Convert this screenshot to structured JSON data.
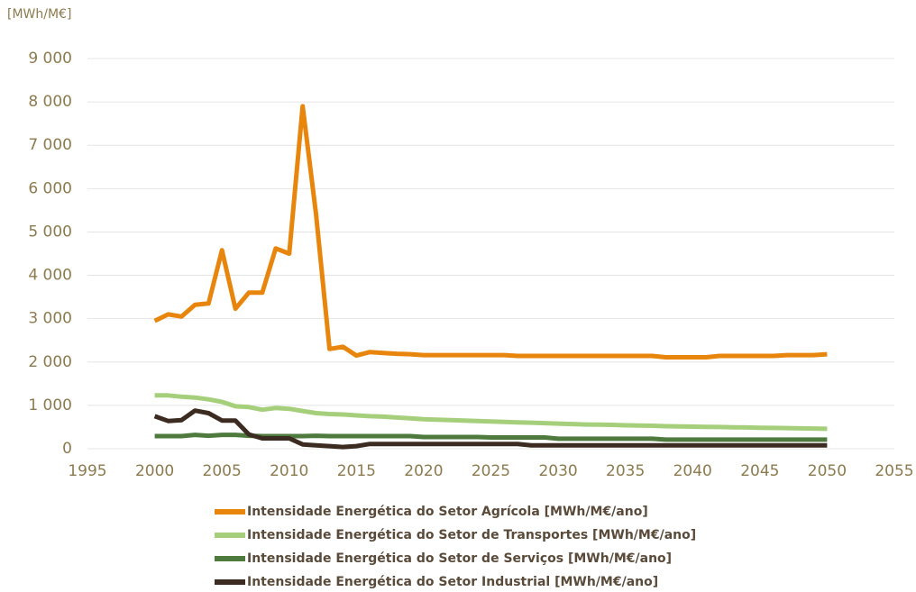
{
  "chart_data": {
    "type": "line",
    "y_label": "[MWh/M€]",
    "x": [
      2000,
      2001,
      2002,
      2003,
      2004,
      2005,
      2006,
      2007,
      2008,
      2009,
      2010,
      2011,
      2012,
      2013,
      2014,
      2015,
      2016,
      2017,
      2018,
      2019,
      2020,
      2021,
      2022,
      2023,
      2024,
      2025,
      2026,
      2027,
      2028,
      2029,
      2030,
      2031,
      2032,
      2033,
      2034,
      2035,
      2036,
      2037,
      2038,
      2039,
      2040,
      2041,
      2042,
      2043,
      2044,
      2045,
      2046,
      2047,
      2048,
      2049,
      2050
    ],
    "series": [
      {
        "name": "Intensidade Energética do Setor Agrícola [MWh/M€/ano]",
        "color": "#e8850c",
        "values": [
          2950,
          3100,
          3050,
          3320,
          3350,
          4580,
          3230,
          3600,
          3600,
          4620,
          4500,
          7900,
          5400,
          2300,
          2350,
          2150,
          2230,
          2210,
          2190,
          2180,
          2160,
          2160,
          2160,
          2160,
          2160,
          2160,
          2160,
          2140,
          2140,
          2140,
          2140,
          2140,
          2140,
          2140,
          2140,
          2140,
          2140,
          2140,
          2110,
          2110,
          2110,
          2110,
          2140,
          2140,
          2140,
          2140,
          2140,
          2160,
          2160,
          2160,
          2180
        ]
      },
      {
        "name": "Intensidade Energética do Setor de Transportes [MWh/M€/ano]",
        "color": "#a6cf7c",
        "values": [
          1230,
          1230,
          1200,
          1180,
          1140,
          1080,
          980,
          960,
          900,
          940,
          920,
          870,
          820,
          800,
          790,
          770,
          750,
          740,
          720,
          700,
          680,
          670,
          660,
          650,
          640,
          630,
          620,
          610,
          600,
          590,
          580,
          570,
          560,
          555,
          550,
          540,
          535,
          530,
          520,
          515,
          510,
          505,
          500,
          495,
          490,
          485,
          480,
          475,
          470,
          465,
          460
        ]
      },
      {
        "name": "Intensidade Energética do Setor de Serviços [MWh/M€/ano]",
        "color": "#4e7a3e",
        "values": [
          290,
          290,
          290,
          320,
          300,
          320,
          320,
          300,
          290,
          290,
          290,
          290,
          300,
          290,
          290,
          290,
          290,
          290,
          290,
          290,
          270,
          270,
          270,
          270,
          270,
          260,
          260,
          260,
          260,
          260,
          230,
          230,
          230,
          230,
          230,
          230,
          230,
          230,
          210,
          210,
          210,
          210,
          210,
          210,
          210,
          210,
          210,
          210,
          210,
          210,
          210
        ]
      },
      {
        "name": "Intensidade Energética do Setor Industrial [MWh/M€/ano]",
        "color": "#3b2b20",
        "values": [
          750,
          640,
          660,
          880,
          820,
          650,
          650,
          330,
          240,
          240,
          240,
          100,
          80,
          60,
          40,
          60,
          110,
          110,
          110,
          110,
          110,
          110,
          110,
          110,
          110,
          110,
          110,
          110,
          80,
          80,
          80,
          80,
          80,
          80,
          80,
          80,
          80,
          80,
          80,
          80,
          80,
          80,
          80,
          80,
          80,
          80,
          80,
          80,
          80,
          80,
          80
        ]
      }
    ],
    "xlim": [
      1995,
      2055
    ],
    "xticks": [
      1995,
      2000,
      2005,
      2010,
      2015,
      2020,
      2025,
      2030,
      2035,
      2040,
      2045,
      2050,
      2055
    ],
    "ylim": [
      0,
      9000
    ],
    "yticks": [
      0,
      {
        "value": 1000,
        "label": "1 000"
      },
      {
        "value": 2000,
        "label": "2 000"
      },
      {
        "value": 3000,
        "label": "3 000"
      },
      {
        "value": 4000,
        "label": "4 000"
      },
      {
        "value": 5000,
        "label": "5 000"
      },
      {
        "value": 6000,
        "label": "6 000"
      },
      {
        "value": 7000,
        "label": "7 000"
      },
      {
        "value": 8000,
        "label": "8 000"
      },
      {
        "value": 9000,
        "label": "9 000"
      }
    ],
    "grid": true
  }
}
